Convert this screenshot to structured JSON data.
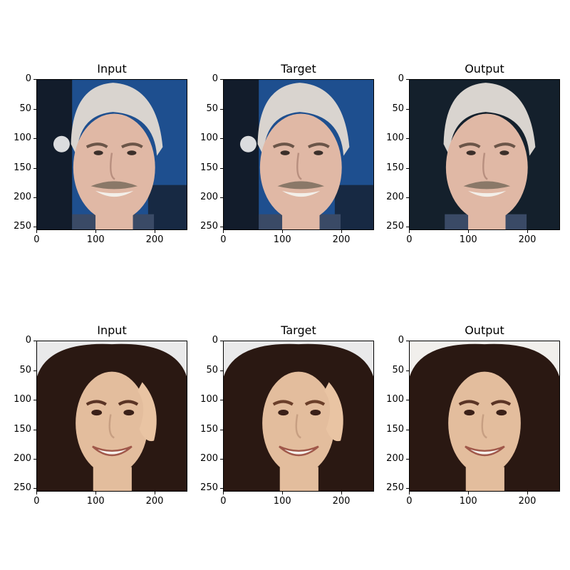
{
  "figure": {
    "rows": [
      {
        "panels": [
          {
            "title": "Input",
            "variant": "man-input"
          },
          {
            "title": "Target",
            "variant": "man-target"
          },
          {
            "title": "Output",
            "variant": "man-output"
          }
        ]
      },
      {
        "panels": [
          {
            "title": "Input",
            "variant": "woman-input"
          },
          {
            "title": "Target",
            "variant": "woman-target"
          },
          {
            "title": "Output",
            "variant": "woman-output"
          }
        ]
      }
    ],
    "y_ticks": [
      "0",
      "50",
      "100",
      "150",
      "200",
      "250"
    ],
    "x_ticks": [
      "0",
      "100",
      "200"
    ],
    "y_tick_values": [
      0,
      50,
      100,
      150,
      200,
      250
    ],
    "x_tick_values": [
      0,
      100,
      200
    ],
    "image_extent": 256
  },
  "colors": {
    "man_background": "#1e4f8f",
    "man_skin": "#e0b8a5",
    "man_hair": "#d9d4cf",
    "woman_background": "#e9e9ea",
    "woman_skin": "#e3bd9d",
    "woman_hair": "#2a1812"
  }
}
